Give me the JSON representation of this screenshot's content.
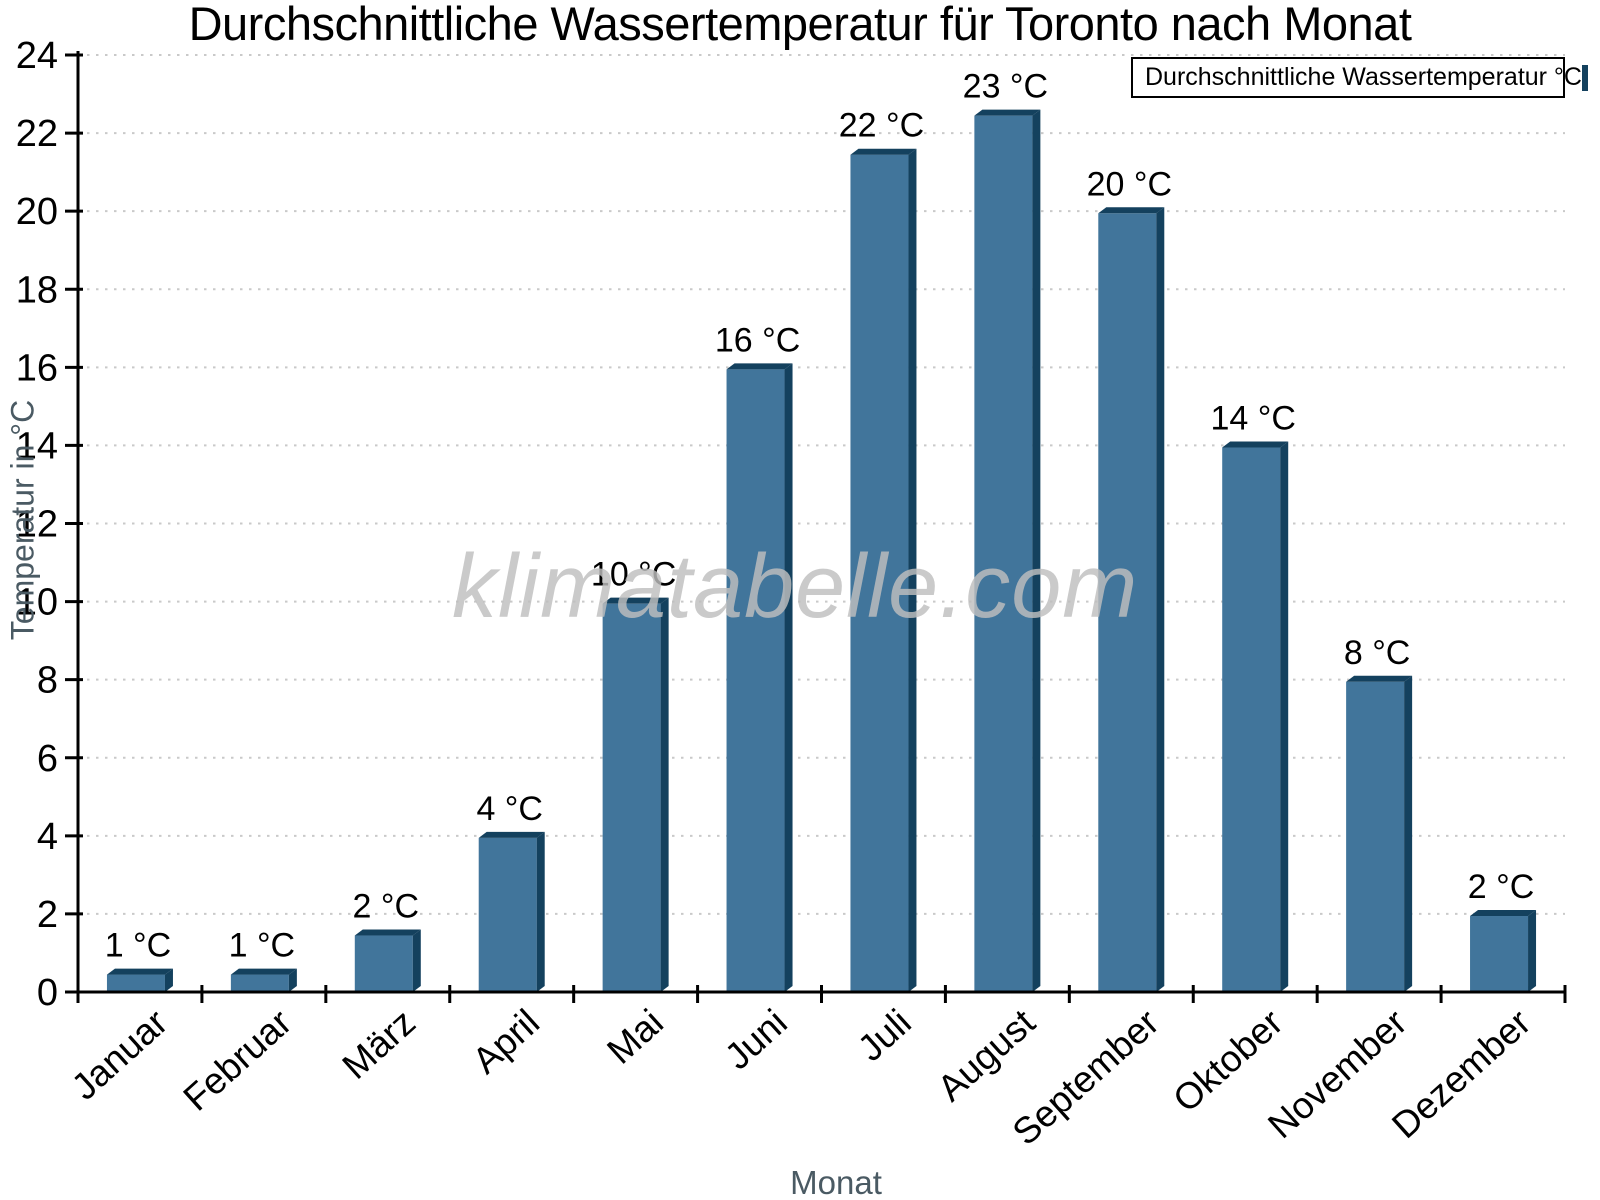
{
  "title": "Durchschnittliche Wassertemperatur für Toronto nach Monat",
  "axis": {
    "ylabel": "Temperatur in °C",
    "xlabel": "Monat"
  },
  "legend": {
    "label": "Durchschnittliche Wassertemperatur °C"
  },
  "watermark": "klimatabelle.com",
  "chart_data": {
    "type": "bar",
    "title": "Durchschnittliche Wassertemperatur für Toronto nach Monat",
    "xlabel": "Monat",
    "ylabel": "Temperatur in °C",
    "categories": [
      "Januar",
      "Februar",
      "März",
      "April",
      "Mai",
      "Juni",
      "Juli",
      "August",
      "September",
      "Oktober",
      "November",
      "Dezember"
    ],
    "values": [
      0.6,
      0.6,
      1.6,
      4.1,
      10.1,
      16.1,
      21.6,
      22.6,
      20.1,
      14.1,
      8.1,
      2.1
    ],
    "bar_value_labels": [
      "1 °C",
      "1 °C",
      "2 °C",
      "4 °C",
      "10 °C",
      "16 °C",
      "22 °C",
      "23 °C",
      "20 °C",
      "14 °C",
      "8 °C",
      "2 °C"
    ],
    "series_name": "Durchschnittliche Wassertemperatur °C",
    "ylim": [
      0,
      24
    ],
    "ytick_step": 2,
    "yticks": [
      0,
      2,
      4,
      6,
      8,
      10,
      12,
      14,
      16,
      18,
      20,
      22,
      24
    ],
    "grid": "horizontal-dotted",
    "legend_position": "top-right",
    "bar_style": "3d-bevel",
    "colors": {
      "bar_face": "#41759b",
      "bar_edge": "#14415e",
      "grid": "#c9c9c9",
      "axis": "#000000",
      "tick_label": "#000000",
      "axis_title": "#4a5a63",
      "watermark": "#bfbfbf",
      "background": "#ffffff"
    }
  }
}
